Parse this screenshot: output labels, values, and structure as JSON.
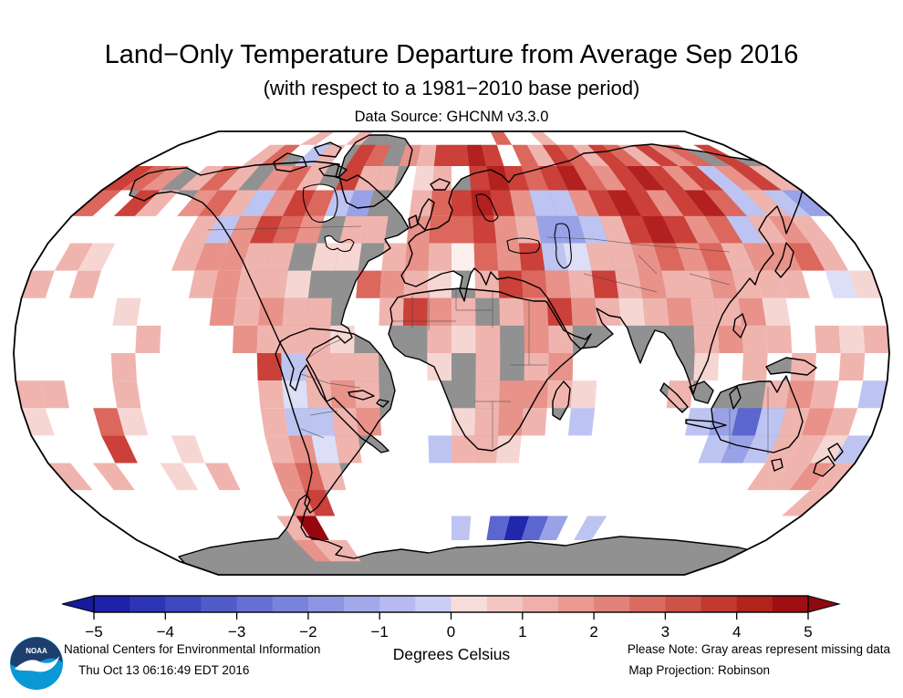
{
  "header": {
    "title": "Land−Only Temperature Departure from Average Sep 2016",
    "subtitle": "(with respect to a 1981−2010 base period)",
    "source": "Data Source: GHCNM v3.3.0"
  },
  "colorbar": {
    "unit_label": "Degrees Celsius",
    "ticks": [
      "−5",
      "−4",
      "−3",
      "−2",
      "−1",
      "0",
      "1",
      "2",
      "3",
      "4",
      "5"
    ],
    "range": [
      -5,
      5
    ],
    "segments": [
      "#1d22a9",
      "#2e35b5",
      "#3f47c0",
      "#525cc9",
      "#6670d2",
      "#7a83da",
      "#8e95e2",
      "#a2a8ea",
      "#b6baf0",
      "#cbcef6",
      "#f7dcda",
      "#f3c6c3",
      "#efb0ab",
      "#e99a92",
      "#e28379",
      "#d96b60",
      "#cd5348",
      "#c03a31",
      "#b02419",
      "#9e0e13"
    ],
    "left_arrow_color": "#161b9e",
    "right_arrow_color": "#8d0a10"
  },
  "footer": {
    "org": "National Centers for Environmental Information",
    "timestamp": "Thu Oct 13 06:16:49 EDT 2016",
    "note": "Please Note: Gray areas represent missing data",
    "projection": "Map Projection: Robinson",
    "logo_text": "NOAA"
  },
  "map": {
    "projection": "Robinson",
    "land_color": "#919191",
    "ocean_color": "#ffffff",
    "outline_color": "#000000",
    "grid_degrees": 10,
    "palette": {
      "p1": "#f6d6d3",
      "p2": "#f0b4af",
      "p3": "#e8928a",
      "r1": "#dc675d",
      "r2": "#cb4038",
      "r3": "#b2211f",
      "r4": "#96060f",
      "n0": "#fbf0ee",
      "b1": "#dcdff7",
      "b2": "#bec4f1",
      "b3": "#99a2e6",
      "b4": "#5b66cf",
      "b5": "#2127ac"
    },
    "cells": [
      [
        8,
        0,
        "p2"
      ],
      [
        11,
        0,
        "p2"
      ],
      [
        21,
        0,
        "r1"
      ],
      [
        24,
        0,
        "p2"
      ],
      [
        6,
        1,
        "p2"
      ],
      [
        7,
        1,
        "r1"
      ],
      [
        9,
        1,
        "b2"
      ],
      [
        10,
        1,
        "p2"
      ],
      [
        12,
        1,
        "r2"
      ],
      [
        13,
        1,
        "r1"
      ],
      [
        15,
        1,
        "p3"
      ],
      [
        16,
        1,
        "p2"
      ],
      [
        17,
        1,
        "r2"
      ],
      [
        18,
        1,
        "r2"
      ],
      [
        19,
        1,
        "r3"
      ],
      [
        20,
        1,
        "r2"
      ],
      [
        22,
        1,
        "r1"
      ],
      [
        23,
        1,
        "p2"
      ],
      [
        24,
        1,
        "r2"
      ],
      [
        25,
        1,
        "r1"
      ],
      [
        26,
        1,
        "p2"
      ],
      [
        27,
        1,
        "r2"
      ],
      [
        28,
        1,
        "r1"
      ],
      [
        29,
        1,
        "p2"
      ],
      [
        30,
        1,
        "r2"
      ],
      [
        31,
        1,
        "p3"
      ],
      [
        32,
        1,
        "r1"
      ],
      [
        34,
        1,
        "r2"
      ],
      [
        0,
        2,
        "r2"
      ],
      [
        1,
        2,
        "r1"
      ],
      [
        2,
        2,
        "p3"
      ],
      [
        4,
        2,
        "p2"
      ],
      [
        5,
        2,
        "r1"
      ],
      [
        6,
        2,
        "p2"
      ],
      [
        8,
        2,
        "p3"
      ],
      [
        9,
        2,
        "r1"
      ],
      [
        10,
        2,
        "p2"
      ],
      [
        12,
        2,
        "r2"
      ],
      [
        13,
        2,
        "p2"
      ],
      [
        14,
        2,
        "p2"
      ],
      [
        16,
        2,
        "p1"
      ],
      [
        17,
        2,
        "p2"
      ],
      [
        19,
        2,
        "r2"
      ],
      [
        20,
        2,
        "r3"
      ],
      [
        21,
        2,
        "r2"
      ],
      [
        22,
        2,
        "r1"
      ],
      [
        23,
        2,
        "r2"
      ],
      [
        24,
        2,
        "r3"
      ],
      [
        25,
        2,
        "r1"
      ],
      [
        26,
        2,
        "p3"
      ],
      [
        27,
        2,
        "r2"
      ],
      [
        28,
        2,
        "r3"
      ],
      [
        29,
        2,
        "r2"
      ],
      [
        30,
        2,
        "p3"
      ],
      [
        31,
        2,
        "r2"
      ],
      [
        32,
        2,
        "b2"
      ],
      [
        33,
        2,
        "p3"
      ],
      [
        34,
        2,
        "r2"
      ],
      [
        35,
        2,
        "p2"
      ],
      [
        0,
        3,
        "r1"
      ],
      [
        2,
        3,
        "r2"
      ],
      [
        3,
        3,
        "p2"
      ],
      [
        5,
        3,
        "p3"
      ],
      [
        6,
        3,
        "r1"
      ],
      [
        7,
        3,
        "p2"
      ],
      [
        8,
        3,
        "b2"
      ],
      [
        9,
        3,
        "p3"
      ],
      [
        10,
        3,
        "r2"
      ],
      [
        11,
        3,
        "r1"
      ],
      [
        12,
        3,
        "b2"
      ],
      [
        13,
        3,
        "b3"
      ],
      [
        16,
        3,
        "p2"
      ],
      [
        17,
        3,
        "r1"
      ],
      [
        18,
        3,
        "r2"
      ],
      [
        19,
        3,
        "r3"
      ],
      [
        20,
        3,
        "r2"
      ],
      [
        21,
        3,
        "p3"
      ],
      [
        22,
        3,
        "b2"
      ],
      [
        23,
        3,
        "b2"
      ],
      [
        24,
        3,
        "p3"
      ],
      [
        25,
        3,
        "r2"
      ],
      [
        26,
        3,
        "r3"
      ],
      [
        27,
        3,
        "r2"
      ],
      [
        28,
        3,
        "p3"
      ],
      [
        29,
        3,
        "r2"
      ],
      [
        30,
        3,
        "r3"
      ],
      [
        31,
        3,
        "r1"
      ],
      [
        32,
        3,
        "b2"
      ],
      [
        33,
        3,
        "p2"
      ],
      [
        34,
        3,
        "b2"
      ],
      [
        35,
        3,
        "b3"
      ],
      [
        6,
        4,
        "p2"
      ],
      [
        7,
        4,
        "b2"
      ],
      [
        8,
        4,
        "p3"
      ],
      [
        9,
        4,
        "r2"
      ],
      [
        10,
        4,
        "r1"
      ],
      [
        11,
        4,
        "p3"
      ],
      [
        13,
        4,
        "p2"
      ],
      [
        14,
        4,
        "p2"
      ],
      [
        16,
        4,
        "p3"
      ],
      [
        17,
        4,
        "r1"
      ],
      [
        18,
        4,
        "r1"
      ],
      [
        19,
        4,
        "r2"
      ],
      [
        20,
        4,
        "p3"
      ],
      [
        21,
        4,
        "p2"
      ],
      [
        22,
        4,
        "b3"
      ],
      [
        23,
        4,
        "b3"
      ],
      [
        24,
        4,
        "b2"
      ],
      [
        25,
        4,
        "p2"
      ],
      [
        26,
        4,
        "r2"
      ],
      [
        27,
        4,
        "r3"
      ],
      [
        28,
        4,
        "r2"
      ],
      [
        29,
        4,
        "p3"
      ],
      [
        30,
        4,
        "r1"
      ],
      [
        31,
        4,
        "b2"
      ],
      [
        32,
        4,
        "p2"
      ],
      [
        33,
        4,
        "p3"
      ],
      [
        34,
        4,
        "p2"
      ],
      [
        1,
        5,
        "p2"
      ],
      [
        2,
        5,
        "p1"
      ],
      [
        6,
        5,
        "p2"
      ],
      [
        7,
        5,
        "p3"
      ],
      [
        8,
        5,
        "p3"
      ],
      [
        9,
        5,
        "p2"
      ],
      [
        10,
        5,
        "p2"
      ],
      [
        12,
        5,
        "p1"
      ],
      [
        13,
        5,
        "p1"
      ],
      [
        15,
        5,
        "p2"
      ],
      [
        16,
        5,
        "p3"
      ],
      [
        17,
        5,
        "p2"
      ],
      [
        18,
        5,
        "n0"
      ],
      [
        19,
        5,
        "r1"
      ],
      [
        20,
        5,
        "p3"
      ],
      [
        21,
        5,
        "r2"
      ],
      [
        22,
        5,
        "b2"
      ],
      [
        23,
        5,
        "b1"
      ],
      [
        24,
        5,
        "p2"
      ],
      [
        25,
        5,
        "p2"
      ],
      [
        26,
        5,
        "p3"
      ],
      [
        27,
        5,
        "r1"
      ],
      [
        28,
        5,
        "p3"
      ],
      [
        29,
        5,
        "r1"
      ],
      [
        30,
        5,
        "p2"
      ],
      [
        31,
        5,
        "p3"
      ],
      [
        32,
        5,
        "p3"
      ],
      [
        33,
        5,
        "r1"
      ],
      [
        34,
        5,
        "p2"
      ],
      [
        0,
        6,
        "p2"
      ],
      [
        2,
        6,
        "p2"
      ],
      [
        7,
        6,
        "p2"
      ],
      [
        8,
        6,
        "p3"
      ],
      [
        9,
        6,
        "p2"
      ],
      [
        10,
        6,
        "p2"
      ],
      [
        11,
        6,
        "p1"
      ],
      [
        14,
        6,
        "r1"
      ],
      [
        15,
        6,
        "p3"
      ],
      [
        16,
        6,
        "p2"
      ],
      [
        17,
        6,
        "p1"
      ],
      [
        19,
        6,
        "p2"
      ],
      [
        20,
        6,
        "r2"
      ],
      [
        21,
        6,
        "r1"
      ],
      [
        22,
        6,
        "p3"
      ],
      [
        23,
        6,
        "p2"
      ],
      [
        24,
        6,
        "r2"
      ],
      [
        25,
        6,
        "p2"
      ],
      [
        26,
        6,
        "p3"
      ],
      [
        27,
        6,
        "p2"
      ],
      [
        28,
        6,
        "p2"
      ],
      [
        29,
        6,
        "p3"
      ],
      [
        30,
        6,
        "p2"
      ],
      [
        31,
        6,
        "p2"
      ],
      [
        32,
        6,
        "p2"
      ],
      [
        34,
        6,
        "b1"
      ],
      [
        35,
        6,
        "p1"
      ],
      [
        4,
        7,
        "p1"
      ],
      [
        8,
        7,
        "p3"
      ],
      [
        9,
        7,
        "p2"
      ],
      [
        10,
        7,
        "p3"
      ],
      [
        11,
        7,
        "p2"
      ],
      [
        12,
        7,
        "p2"
      ],
      [
        15,
        7,
        "p2"
      ],
      [
        16,
        7,
        "r2"
      ],
      [
        17,
        7,
        "p3"
      ],
      [
        18,
        7,
        "p2"
      ],
      [
        20,
        7,
        "p2"
      ],
      [
        21,
        7,
        "p3"
      ],
      [
        22,
        7,
        "r2"
      ],
      [
        23,
        7,
        "p3"
      ],
      [
        24,
        7,
        "p2"
      ],
      [
        25,
        7,
        "p1"
      ],
      [
        26,
        7,
        "p2"
      ],
      [
        27,
        7,
        "p3"
      ],
      [
        28,
        7,
        "p2"
      ],
      [
        29,
        7,
        "p2"
      ],
      [
        30,
        7,
        "p3"
      ],
      [
        31,
        7,
        "p1"
      ],
      [
        5,
        8,
        "p2"
      ],
      [
        9,
        8,
        "p3"
      ],
      [
        10,
        8,
        "p2"
      ],
      [
        11,
        8,
        "p2"
      ],
      [
        12,
        8,
        "p2"
      ],
      [
        13,
        8,
        "p1"
      ],
      [
        17,
        8,
        "p2"
      ],
      [
        18,
        8,
        "p1"
      ],
      [
        19,
        8,
        "p2"
      ],
      [
        21,
        8,
        "p3"
      ],
      [
        22,
        8,
        "p2"
      ],
      [
        28,
        8,
        "p2"
      ],
      [
        29,
        8,
        "p3"
      ],
      [
        30,
        8,
        "p2"
      ],
      [
        31,
        8,
        "p2"
      ],
      [
        33,
        8,
        "p2"
      ],
      [
        34,
        8,
        "p1"
      ],
      [
        35,
        8,
        "p2"
      ],
      [
        4,
        9,
        "p2"
      ],
      [
        10,
        9,
        "r2"
      ],
      [
        11,
        9,
        "b2"
      ],
      [
        12,
        9,
        "p2"
      ],
      [
        13,
        9,
        "p2"
      ],
      [
        14,
        9,
        "p2"
      ],
      [
        17,
        9,
        "p1"
      ],
      [
        19,
        9,
        "p2"
      ],
      [
        21,
        9,
        "p2"
      ],
      [
        22,
        9,
        "p3"
      ],
      [
        28,
        9,
        "p1"
      ],
      [
        30,
        9,
        "p2"
      ],
      [
        32,
        9,
        "p2"
      ],
      [
        34,
        9,
        "p2"
      ],
      [
        0,
        10,
        "p2"
      ],
      [
        1,
        10,
        "p2"
      ],
      [
        4,
        10,
        "p2"
      ],
      [
        10,
        10,
        "p2"
      ],
      [
        11,
        10,
        "b1"
      ],
      [
        12,
        10,
        "p2"
      ],
      [
        13,
        10,
        "p3"
      ],
      [
        14,
        10,
        "p2"
      ],
      [
        19,
        10,
        "p2"
      ],
      [
        20,
        10,
        "p3"
      ],
      [
        21,
        10,
        "p3"
      ],
      [
        22,
        10,
        "p2"
      ],
      [
        23,
        10,
        "p1"
      ],
      [
        27,
        10,
        "p2"
      ],
      [
        31,
        10,
        "p2"
      ],
      [
        32,
        10,
        "p3"
      ],
      [
        33,
        10,
        "p2"
      ],
      [
        35,
        10,
        "b2"
      ],
      [
        0,
        11,
        "p1"
      ],
      [
        3,
        11,
        "r1"
      ],
      [
        4,
        11,
        "p1"
      ],
      [
        10,
        11,
        "p2"
      ],
      [
        11,
        11,
        "b2"
      ],
      [
        12,
        11,
        "b2"
      ],
      [
        13,
        11,
        "p2"
      ],
      [
        14,
        11,
        "p3"
      ],
      [
        18,
        11,
        "p1"
      ],
      [
        19,
        11,
        "p2"
      ],
      [
        20,
        11,
        "p3"
      ],
      [
        21,
        11,
        "p2"
      ],
      [
        23,
        11,
        "b2"
      ],
      [
        28,
        11,
        "b2"
      ],
      [
        29,
        11,
        "b3"
      ],
      [
        30,
        11,
        "b4"
      ],
      [
        31,
        11,
        "b2"
      ],
      [
        32,
        11,
        "p2"
      ],
      [
        33,
        11,
        "p3"
      ],
      [
        34,
        11,
        "p2"
      ],
      [
        3,
        12,
        "r2"
      ],
      [
        6,
        12,
        "p1"
      ],
      [
        10,
        12,
        "p2"
      ],
      [
        11,
        12,
        "p3"
      ],
      [
        12,
        12,
        "b1"
      ],
      [
        13,
        12,
        "p2"
      ],
      [
        17,
        12,
        "b2"
      ],
      [
        18,
        12,
        "p2"
      ],
      [
        19,
        12,
        "p2"
      ],
      [
        20,
        12,
        "p1"
      ],
      [
        29,
        12,
        "b2"
      ],
      [
        30,
        12,
        "b3"
      ],
      [
        31,
        12,
        "b2"
      ],
      [
        32,
        12,
        "p2"
      ],
      [
        33,
        12,
        "p2"
      ],
      [
        34,
        12,
        "p1"
      ],
      [
        35,
        12,
        "b2"
      ],
      [
        0,
        13,
        "p2"
      ],
      [
        2,
        13,
        "p2"
      ],
      [
        5,
        13,
        "p1"
      ],
      [
        7,
        13,
        "p2"
      ],
      [
        10,
        13,
        "p3"
      ],
      [
        11,
        13,
        "r1"
      ],
      [
        12,
        13,
        "p2"
      ],
      [
        32,
        13,
        "p2"
      ],
      [
        33,
        13,
        "p2"
      ],
      [
        34,
        13,
        "p3"
      ],
      [
        35,
        13,
        "p2"
      ],
      [
        10,
        14,
        "p3"
      ],
      [
        11,
        14,
        "r2"
      ],
      [
        35,
        14,
        "p2"
      ],
      [
        9,
        15,
        "p2"
      ],
      [
        10,
        15,
        "r4"
      ],
      [
        18,
        15,
        "b2"
      ],
      [
        20,
        15,
        "b4"
      ],
      [
        21,
        15,
        "b5"
      ],
      [
        22,
        15,
        "b4"
      ],
      [
        23,
        15,
        "b3"
      ],
      [
        25,
        15,
        "b2"
      ],
      [
        9,
        16,
        "p3"
      ],
      [
        10,
        16,
        "p2"
      ],
      [
        11,
        16,
        "p2"
      ]
    ]
  }
}
